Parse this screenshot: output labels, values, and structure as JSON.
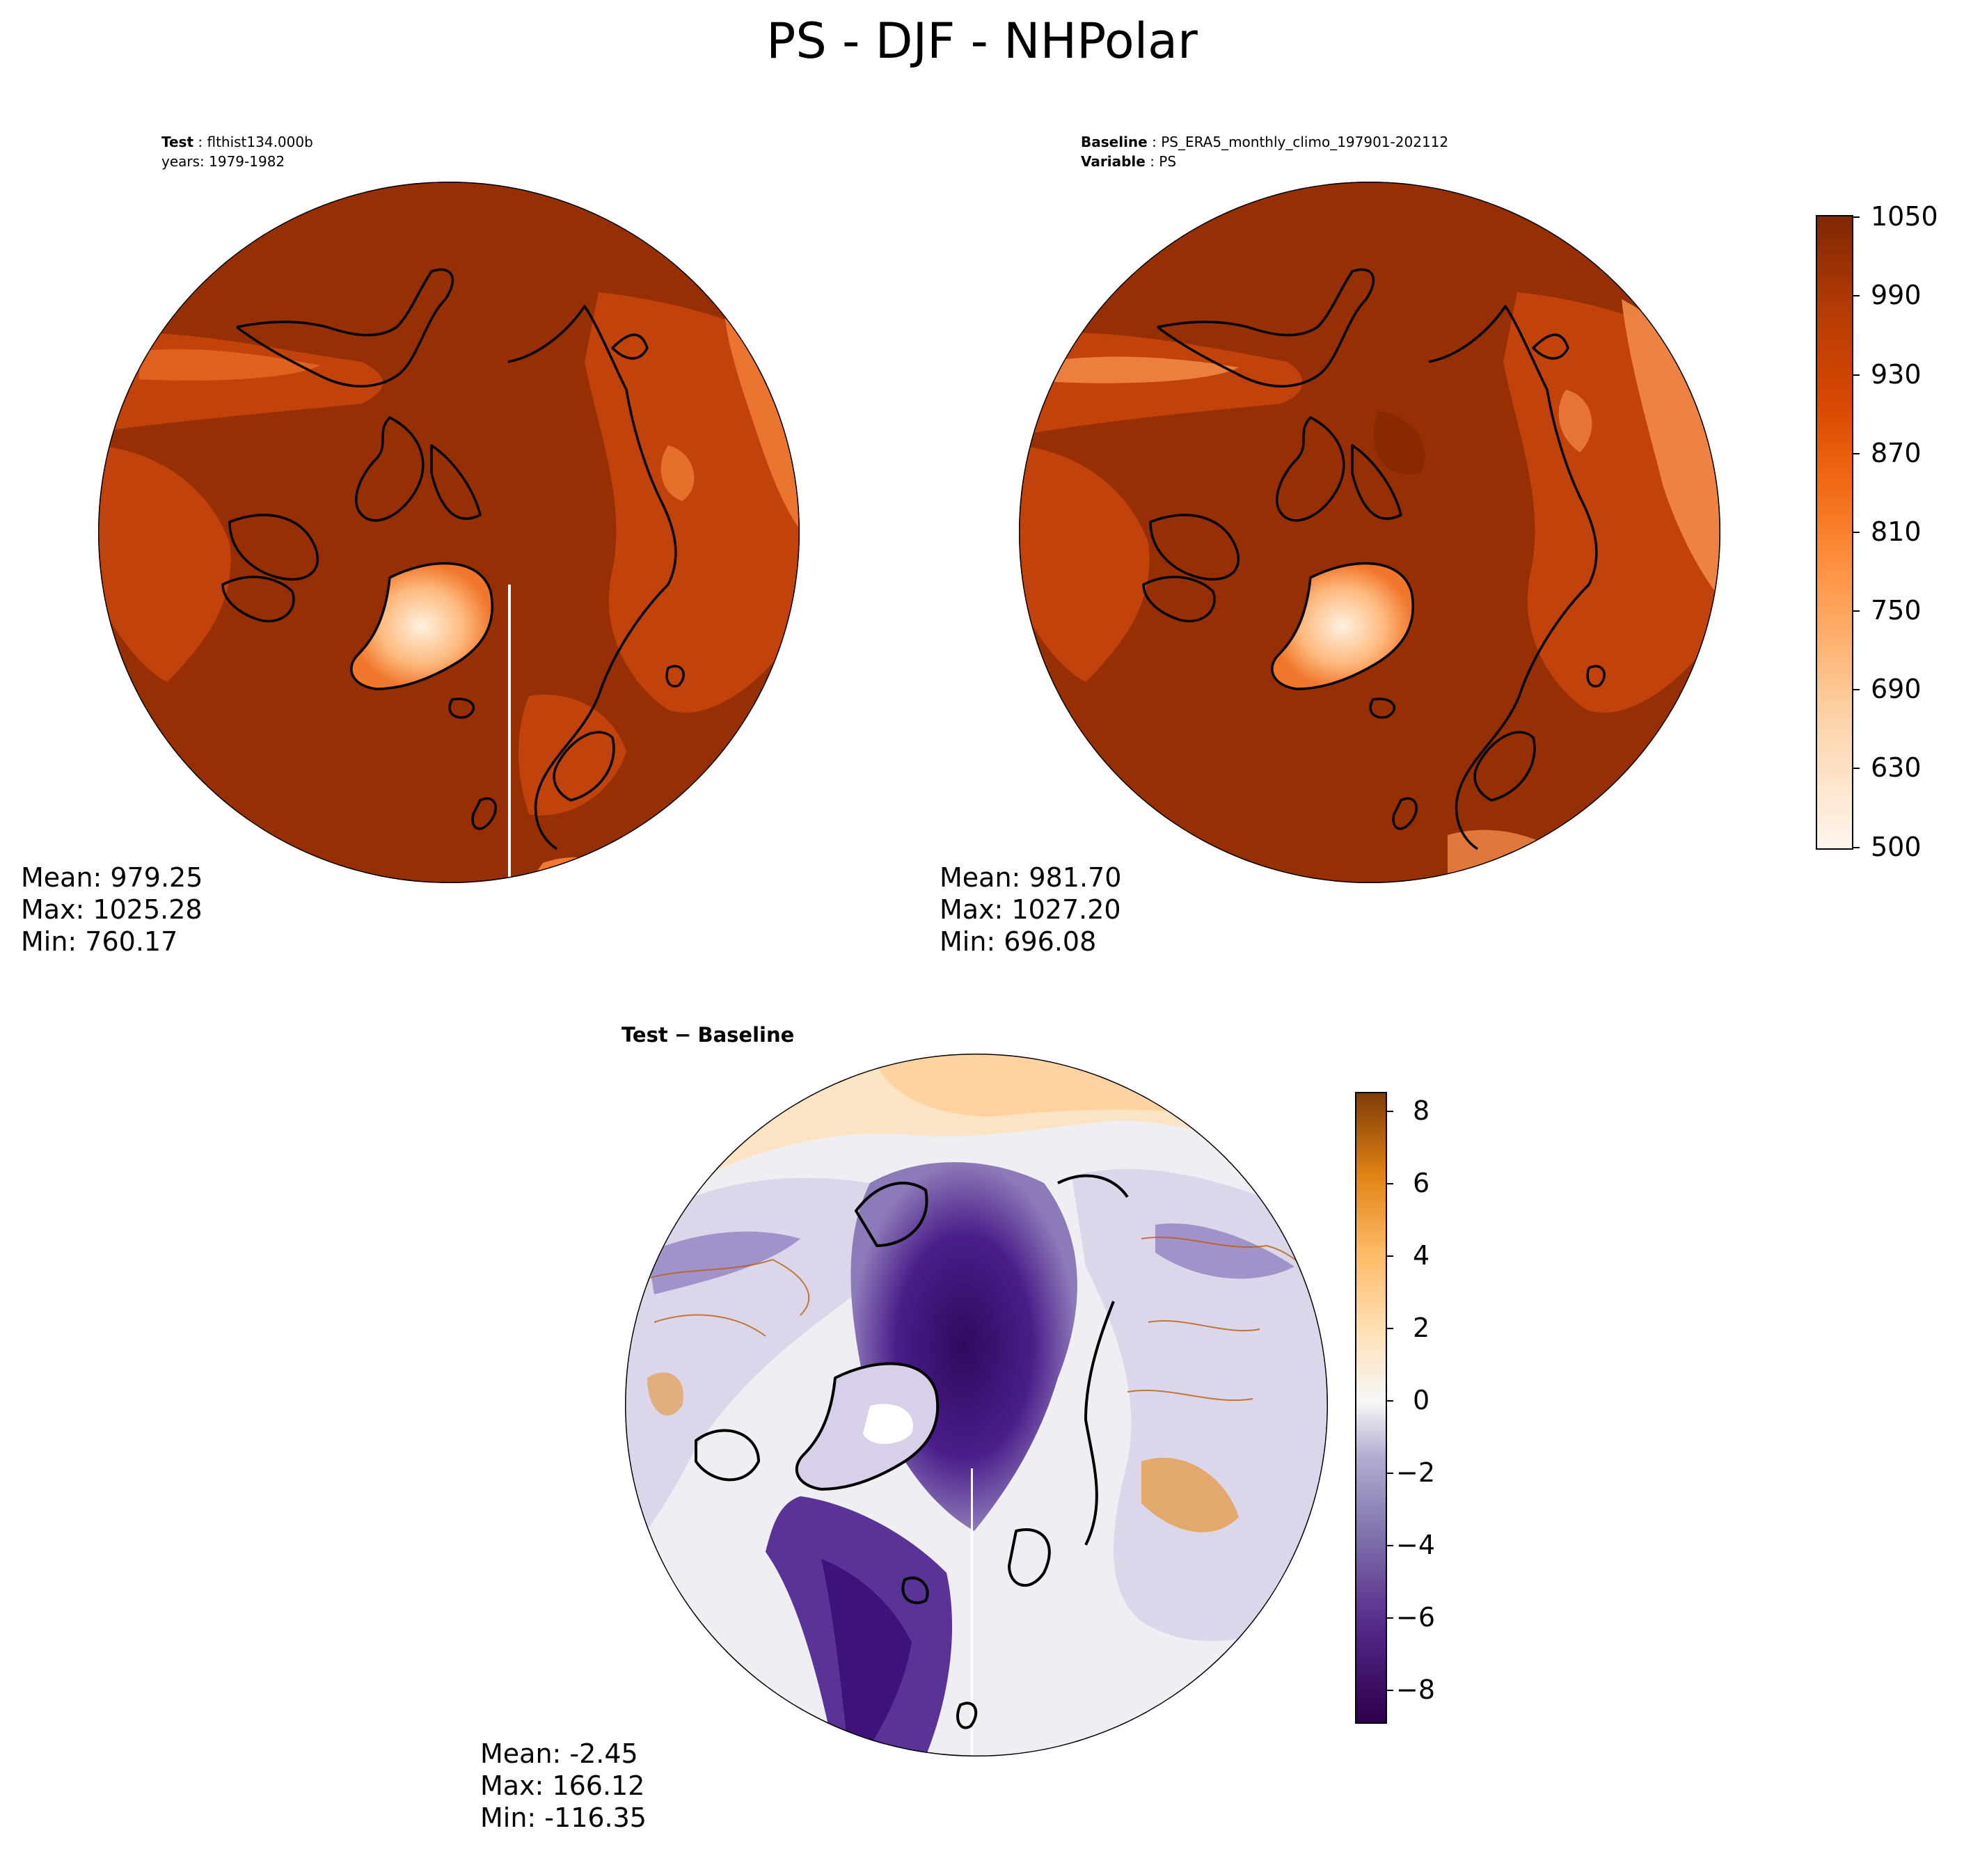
{
  "suptitle": "PS - DJF - NHPolar",
  "colors": {
    "main_dark": "#972f05",
    "main_mid": "#cd4a0b",
    "land_light": "#f58a3c",
    "greenland": "#fdbf8a",
    "diff_neg": "#3f117a",
    "diff_pos": "#d0750a",
    "diff_zero": "#f2f2f4"
  },
  "test_panel": {
    "label_key": "Test",
    "label_value": "flthist134.000b",
    "years": "years: 1979-1982",
    "stats": {
      "mean": "Mean: 979.25",
      "max": "Max: 1025.28",
      "min": "Min: 760.17"
    }
  },
  "baseline_panel": {
    "label_key": "Baseline",
    "label_value": "PS_ERA5_monthly_climo_197901-202112",
    "variable_key": "Variable",
    "variable_value": "PS",
    "stats": {
      "mean": "Mean: 981.70",
      "max": "Max: 1027.20",
      "min": "Min: 696.08"
    }
  },
  "diff_panel": {
    "title_left": "Test",
    "title_sep": "−",
    "title_right": "Baseline",
    "stats": {
      "mean": "Mean: -2.45",
      "max": "Max: 166.12",
      "min": "Min: -116.35"
    }
  },
  "chart_data": [
    {
      "type": "heatmap",
      "title": "PS - DJF - NHPolar",
      "projection": "north polar stereographic",
      "panels": [
        "Test: flthist134.000b",
        "Baseline: PS_ERA5_monthly_climo_197901-202112"
      ],
      "colorbar": {
        "ticks": [
          "1050",
          "990",
          "930",
          "870",
          "810",
          "750",
          "690",
          "630",
          "500"
        ],
        "levels": [
          500,
          600,
          630,
          660,
          690,
          720,
          750,
          780,
          810,
          840,
          870,
          900,
          930,
          960,
          990,
          1020,
          1050
        ],
        "range": [
          500,
          1050
        ],
        "colormap": "Oranges"
      }
    },
    {
      "type": "heatmap",
      "title": "Test − Baseline",
      "projection": "north polar stereographic",
      "colorbar": {
        "ticks": [
          "8",
          "6",
          "4",
          "2",
          "0",
          "−2",
          "−4",
          "−6",
          "−8"
        ],
        "range": [
          -9,
          8.5
        ],
        "colormap": "PuOr_r"
      }
    }
  ]
}
